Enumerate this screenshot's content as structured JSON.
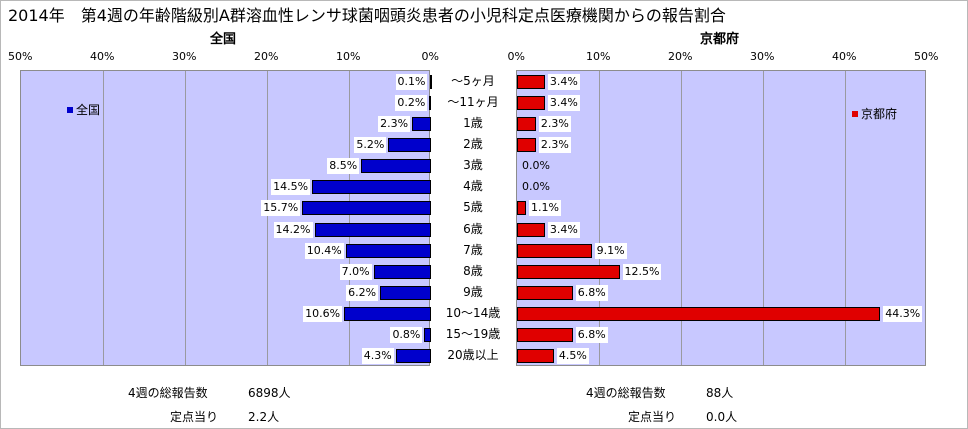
{
  "title": "2014年　第4週の年齢階級別A群溶血性レンサ球菌咽頭炎患者の小児科定点医療機関からの報告割合",
  "chart_data": {
    "type": "bar",
    "orientation": "horizontal",
    "categories": [
      "～5ヶ月",
      "～11ヶ月",
      "1歳",
      "2歳",
      "3歳",
      "4歳",
      "5歳",
      "6歳",
      "7歳",
      "8歳",
      "9歳",
      "10～14歳",
      "15～19歳",
      "20歳以上"
    ],
    "axis_ticks": [
      "50%",
      "40%",
      "30%",
      "20%",
      "10%",
      "0%"
    ],
    "axis_ticks_right": [
      "0%",
      "10%",
      "20%",
      "30%",
      "40%",
      "50%"
    ],
    "xlim": [
      0,
      50
    ],
    "grid": true,
    "series": [
      {
        "name": "全国",
        "panel_title": "全国",
        "color": "#0000cc",
        "values": [
          0.1,
          0.2,
          2.3,
          5.2,
          8.5,
          14.5,
          15.7,
          14.2,
          10.4,
          7.0,
          6.2,
          10.6,
          0.8,
          4.3
        ],
        "labels": [
          "0.1%",
          "0.2%",
          "2.3%",
          "5.2%",
          "8.5%",
          "14.5%",
          "15.7%",
          "14.2%",
          "10.4%",
          "7.0%",
          "6.2%",
          "10.6%",
          "0.8%",
          "4.3%"
        ],
        "legend_position": "top-left"
      },
      {
        "name": "京都府",
        "panel_title": "京都府",
        "color": "#e00000",
        "values": [
          3.4,
          3.4,
          2.3,
          2.3,
          0.0,
          0.0,
          1.1,
          3.4,
          9.1,
          12.5,
          6.8,
          44.3,
          6.8,
          4.5
        ],
        "labels": [
          "3.4%",
          "3.4%",
          "2.3%",
          "2.3%",
          "0.0%",
          "0.0%",
          "1.1%",
          "3.4%",
          "9.1%",
          "12.5%",
          "6.8%",
          "44.3%",
          "6.8%",
          "4.5%"
        ],
        "legend_position": "top-right"
      }
    ]
  },
  "footer": {
    "left": {
      "reports_label": "4週の総報告数",
      "reports_value": "6898人",
      "per_site_label": "定点当り",
      "per_site_value": "2.2人"
    },
    "right": {
      "reports_label": "4週の総報告数",
      "reports_value": "88人",
      "per_site_label": "定点当り",
      "per_site_value": "0.0人"
    }
  }
}
